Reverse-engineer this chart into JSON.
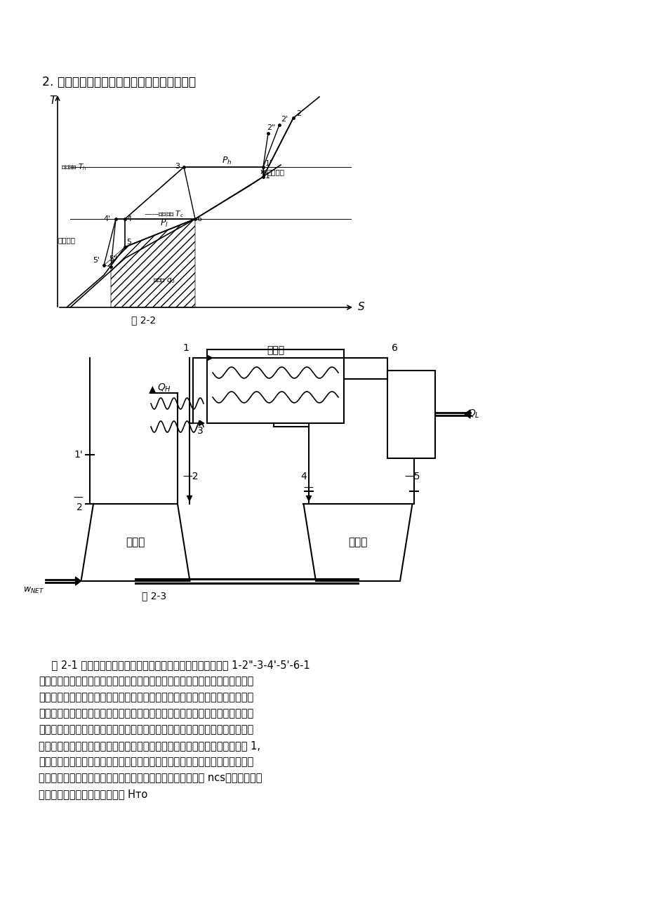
{
  "title": "2. 逆布雷顿循环制冷系统循环分析与理论设计",
  "fig22_label": "图 2-2",
  "fig23_label": "图 2-3",
  "paragraph": "    图 2-1 是逆布雷顿空气制冷循环热力过程原理图。理论循环由 1-2\"-3-4'-5'-6-1\n表示，但是由于各种因素的影响，空气制冷系统的实际循环和理论循环的差别很\n大。为了便于分析我们采用一些简化的处理方法，首先假设空气是理想气体，理\n想气体假设在这篇论文所讨论的温度和压力范围内所造成的误差很小，可以忽略\n不计；假设吸热和放热过程为等压过程，压缩很膨胀过程中的损失可以折算到进\n出口压力上去；在回热过程中考虑传热温差，此时的回冷热交换器的效率小于 1,\n而且在处理回热过程时假设它没有流动阻力损失，并把漏热损失折算为用冷装置\n的热负荷；空气在压缩机中的压缩过程要考虑到绝热压缩效率 ncs，在膨胀机中\n的膨胀过程要考虑到相对内效率 Hто",
  "bg_color": "#ffffff",
  "text_color": "#000000"
}
